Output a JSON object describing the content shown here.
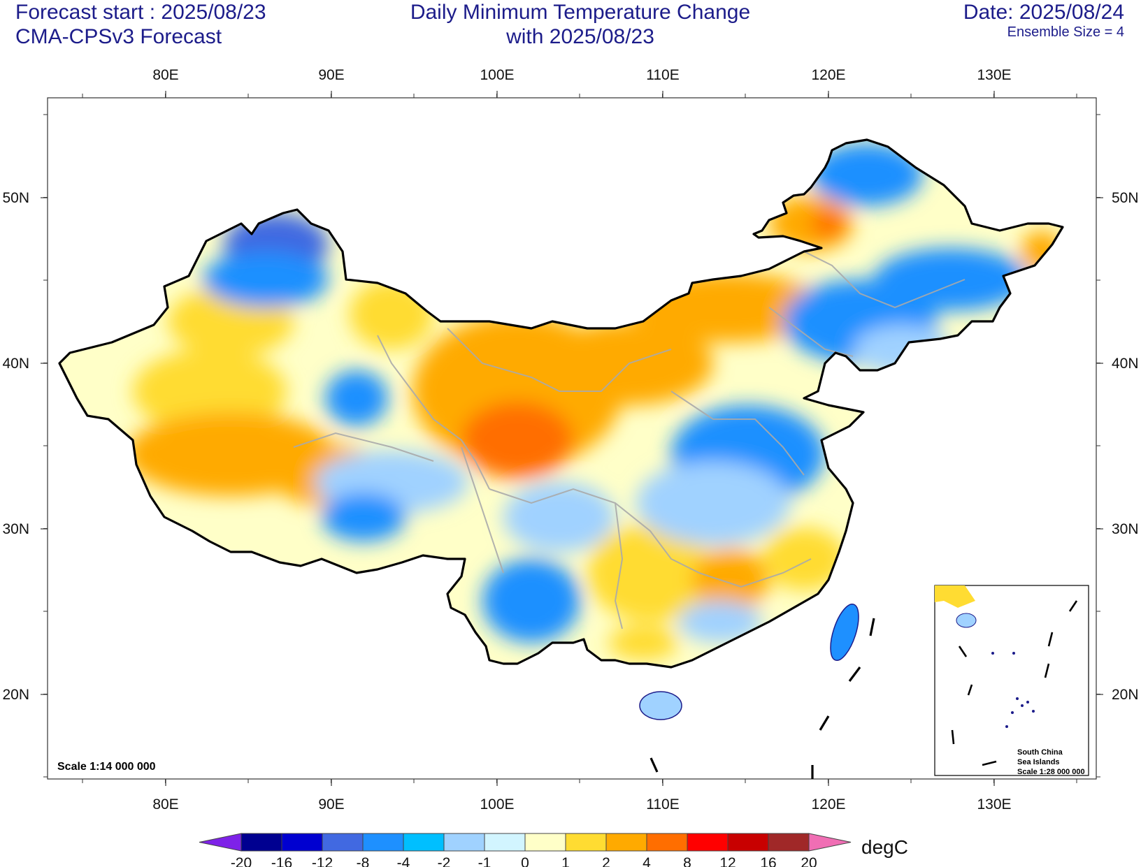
{
  "header": {
    "left_line1": "Forecast start : 2025/08/23",
    "left_line2": "CMA-CPSv3 Forecast",
    "center_line1": "Daily Minimum Temperature Change",
    "center_line2": "with 2025/08/23",
    "right_line1": "Date: 2025/08/24",
    "right_line2": "Ensemble Size = 4"
  },
  "map": {
    "lon_labels": [
      "80E",
      "90E",
      "100E",
      "110E",
      "120E",
      "130E"
    ],
    "lat_labels": [
      "50N",
      "40N",
      "30N",
      "20N"
    ],
    "scale_text": "Scale 1:14 000 000",
    "inset": {
      "line1": "South China",
      "line2": "Sea Islands",
      "line3": "Scale 1:28 000 000"
    }
  },
  "colorbar": {
    "unit": "degC",
    "labels": [
      "-20",
      "-16",
      "-12",
      "-8",
      "-4",
      "-2",
      "-1",
      "0",
      "1",
      "2",
      "4",
      "8",
      "12",
      "16",
      "20"
    ],
    "colors": [
      "#7e22e8",
      "#000090",
      "#0000d0",
      "#4169e1",
      "#1e90ff",
      "#00bfff",
      "#a0d2ff",
      "#d2f5ff",
      "#ffffc8",
      "#ffdc32",
      "#ffaa00",
      "#ff6e00",
      "#ff0000",
      "#c80000",
      "#a02828",
      "#f06eb4"
    ]
  }
}
